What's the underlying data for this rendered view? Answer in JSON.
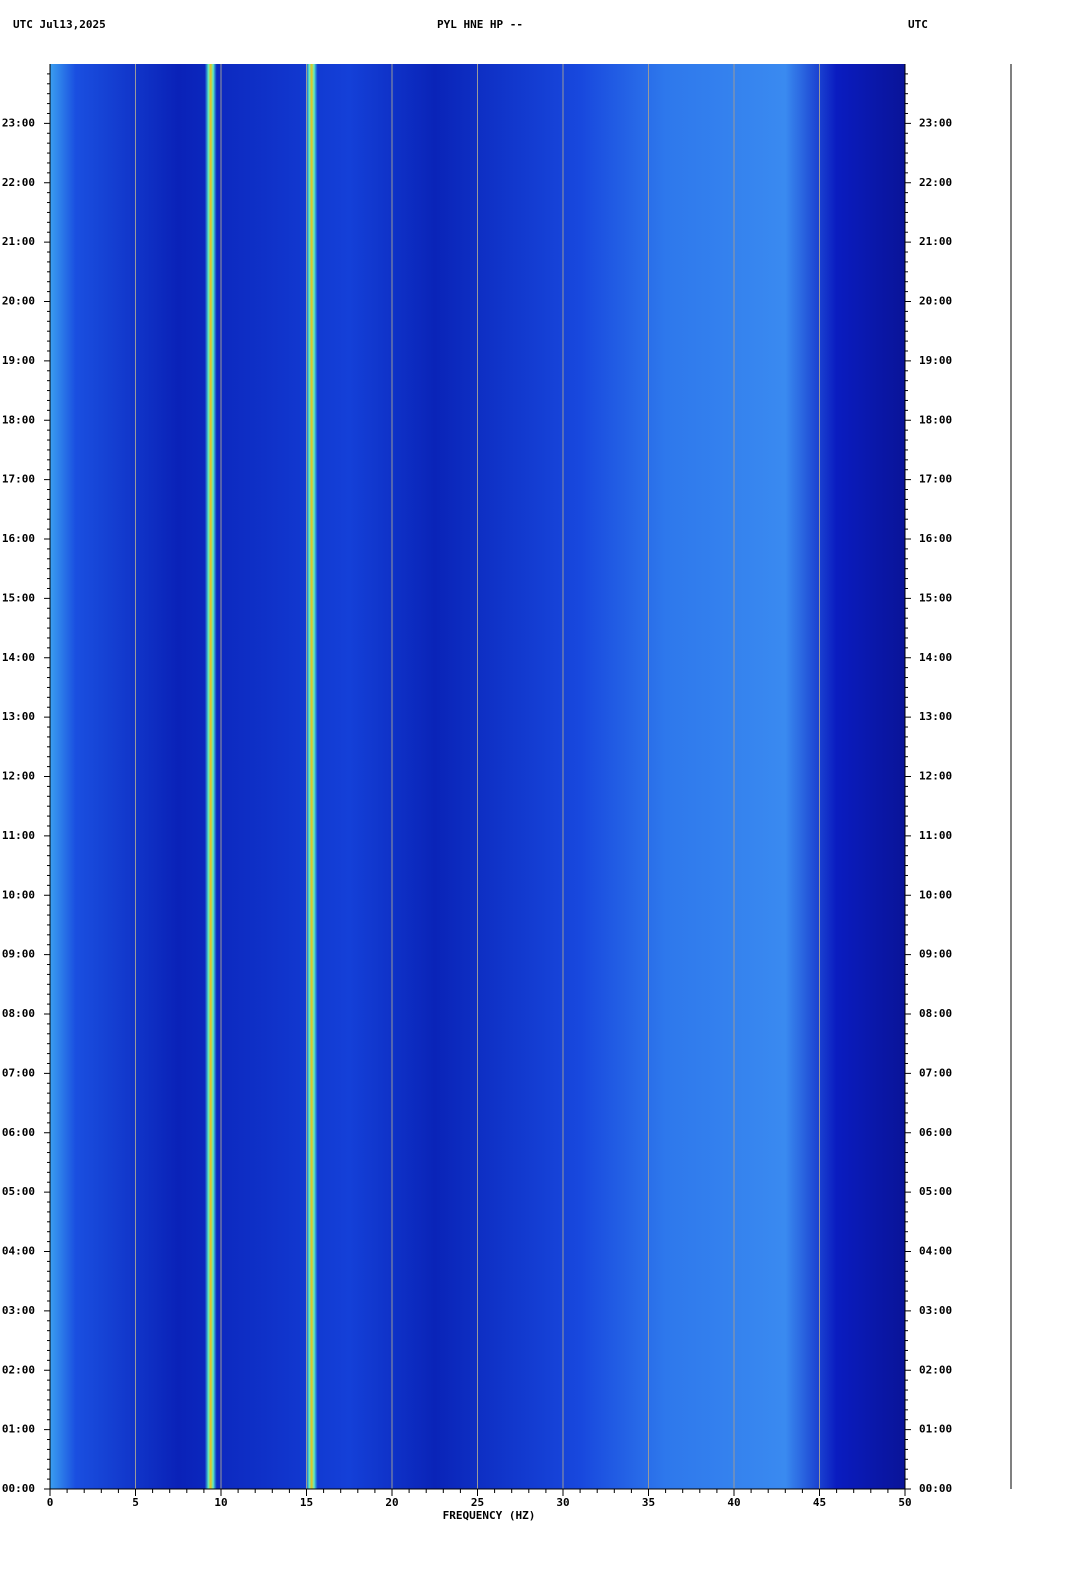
{
  "chart_data": {
    "type": "spectrogram",
    "title": "PYL HNE HP --",
    "left_header": "UTC  Jul13,2025",
    "right_header": "UTC",
    "xlabel": "FREQUENCY (HZ)",
    "xlim": [
      0,
      50
    ],
    "xticks": [
      0,
      5,
      10,
      15,
      20,
      25,
      30,
      35,
      40,
      45,
      50
    ],
    "ylim": [
      0,
      24
    ],
    "yticks": [
      {
        "value": 0,
        "label": "00:00"
      },
      {
        "value": 1,
        "label": "01:00"
      },
      {
        "value": 2,
        "label": "02:00"
      },
      {
        "value": 3,
        "label": "03:00"
      },
      {
        "value": 4,
        "label": "04:00"
      },
      {
        "value": 5,
        "label": "05:00"
      },
      {
        "value": 6,
        "label": "06:00"
      },
      {
        "value": 7,
        "label": "07:00"
      },
      {
        "value": 8,
        "label": "08:00"
      },
      {
        "value": 9,
        "label": "09:00"
      },
      {
        "value": 10,
        "label": "10:00"
      },
      {
        "value": 11,
        "label": "11:00"
      },
      {
        "value": 12,
        "label": "12:00"
      },
      {
        "value": 13,
        "label": "13:00"
      },
      {
        "value": 14,
        "label": "14:00"
      },
      {
        "value": 15,
        "label": "15:00"
      },
      {
        "value": 16,
        "label": "16:00"
      },
      {
        "value": 17,
        "label": "17:00"
      },
      {
        "value": 18,
        "label": "18:00"
      },
      {
        "value": 19,
        "label": "19:00"
      },
      {
        "value": 20,
        "label": "20:00"
      },
      {
        "value": 21,
        "label": "21:00"
      },
      {
        "value": 22,
        "label": "22:00"
      },
      {
        "value": 23,
        "label": "23:00"
      }
    ],
    "spectral_lines_hz": [
      9.4,
      15.3
    ],
    "grid": true
  }
}
